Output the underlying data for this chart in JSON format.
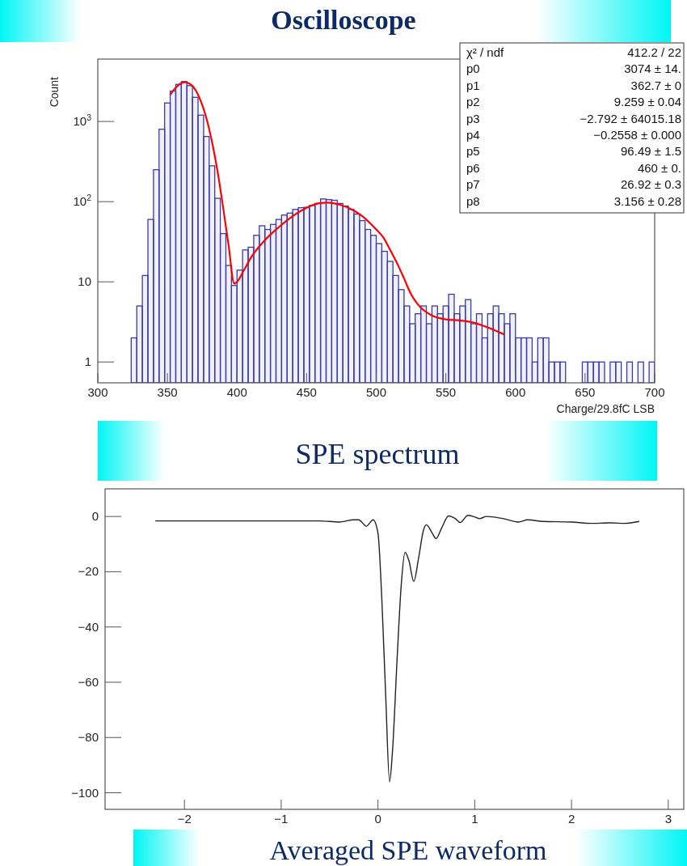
{
  "chart_data": [
    {
      "type": "histogram",
      "title": "Oscilloscope",
      "subtitle": "SPE spectrum",
      "xlabel": "Charge/29.8fC LSB",
      "ylabel": "Count",
      "log": "y",
      "grid": false,
      "color": "#3a3aa8",
      "bins": [
        324,
        328,
        332,
        336,
        340,
        344,
        348,
        352,
        356,
        360,
        364,
        368,
        372,
        376,
        380,
        384,
        388,
        392,
        396,
        400,
        404,
        408,
        412,
        416,
        420,
        424,
        428,
        432,
        436,
        440,
        444,
        448,
        452,
        456,
        460,
        464,
        468,
        472,
        476,
        480,
        484,
        488,
        492,
        496,
        500,
        504,
        508,
        512,
        516,
        520,
        524,
        528,
        532,
        536,
        540,
        544,
        548,
        552,
        556,
        560,
        564,
        568,
        572,
        576,
        580,
        584,
        588,
        592,
        596,
        600,
        604,
        608,
        612,
        616,
        620,
        624,
        628,
        632,
        636,
        640,
        644,
        648,
        652,
        656,
        660,
        664,
        668,
        672,
        676,
        680,
        684,
        688,
        692,
        696,
        700
      ],
      "values": [
        2,
        5,
        12,
        60,
        250,
        800,
        1700,
        2400,
        2900,
        3150,
        2800,
        2000,
        1200,
        650,
        280,
        110,
        40,
        16,
        9,
        14,
        25,
        27,
        38,
        50,
        45,
        52,
        60,
        68,
        72,
        80,
        84,
        85,
        90,
        95,
        108,
        106,
        104,
        95,
        88,
        80,
        70,
        58,
        45,
        38,
        30,
        24,
        18,
        12,
        8,
        5,
        3,
        4,
        5,
        3,
        5,
        4,
        5,
        7,
        4,
        5,
        6,
        3,
        4,
        2,
        4,
        5,
        4,
        3,
        4,
        2,
        2,
        2,
        1,
        2,
        2,
        1,
        1,
        1,
        null,
        null,
        null,
        1,
        1,
        1,
        1,
        null,
        1,
        1,
        null,
        1,
        null,
        1,
        null,
        1
      ],
      "series": [
        {
          "type": "line",
          "color": "#ff0000",
          "x": [
            352,
            356,
            360,
            362.7,
            366,
            370,
            374,
            378,
            382,
            386,
            390,
            394,
            398,
            400,
            405,
            410,
            420,
            430,
            440,
            450,
            460,
            465,
            470,
            480,
            490,
            500,
            505,
            510,
            515,
            520,
            525,
            530,
            540,
            550,
            560,
            570,
            580,
            592
          ],
          "values": [
            2150,
            2650,
            3000,
            3074,
            2950,
            2500,
            1800,
            1100,
            560,
            240,
            85,
            28,
            9.5,
            10,
            14,
            20,
            33,
            48,
            66,
            84,
            96,
            97,
            95,
            84,
            66,
            45,
            36,
            25,
            17,
            11,
            7,
            5.2,
            3.8,
            3.4,
            3.3,
            3.1,
            2.7,
            2.2
          ]
        }
      ],
      "xlim": [
        300,
        700
      ],
      "xticks": [
        300,
        350,
        400,
        450,
        500,
        550,
        600,
        650,
        700
      ],
      "ylim": [
        0.55,
        6000
      ],
      "yticks": [
        1,
        10,
        {
          "value": 100,
          "label": "10$^{2}$"
        },
        {
          "value": 1000,
          "label": "10$^{3}$"
        }
      ],
      "annotations": [
        "χ² / ndf  412.2 / 22",
        "p0  3074 ± 14.",
        "p1  362.7 ± 0",
        "p2  9.259 ± 0.04",
        "p3  −2.792 ± 64015.18",
        "p4  −0.2558 ± 0.000",
        "p5  96.49 ± 1.5",
        "p6  460 ± 0.",
        "p7  26.92 ± 0.3",
        "p8  3.156 ± 0.28"
      ]
    },
    {
      "type": "line",
      "title": "Averaged SPE waveform",
      "color": "#222222",
      "grid": false,
      "line_style": "solid",
      "marker": "none",
      "x": [
        -2.3,
        -1.5,
        -0.6,
        -0.4,
        -0.25,
        -0.2,
        -0.12,
        -0.05,
        0,
        0.04,
        0.08,
        0.12,
        0.15,
        0.2,
        0.24,
        0.28,
        0.32,
        0.37,
        0.42,
        0.47,
        0.5,
        0.56,
        0.6,
        0.66,
        0.73,
        0.8,
        0.85,
        0.93,
        1.0,
        1.05,
        1.12,
        1.2,
        1.3,
        1.45,
        1.55,
        1.7,
        2.0,
        2.2,
        2.4,
        2.55,
        2.7
      ],
      "values": [
        -1.6,
        -1.6,
        -1.6,
        -2,
        -1.2,
        -1.2,
        -3.5,
        -1.2,
        -6,
        -30,
        -65,
        -96,
        -85,
        -50,
        -25,
        -13,
        -16,
        -23.5,
        -15,
        -5,
        -3,
        -6,
        -8,
        -4,
        0.2,
        -0.8,
        -2.2,
        0.4,
        -0.2,
        -0.8,
        0,
        -0.2,
        -0.8,
        -2,
        -1.2,
        -1.8,
        -2,
        -2.5,
        -2.3,
        -2.5,
        -1.8
      ],
      "xlim": [
        -2.82,
        3.16
      ],
      "xticks": [
        {
          "value": -2,
          "label": "−2"
        },
        {
          "value": -1,
          "label": "−1"
        },
        0,
        1,
        2,
        3
      ],
      "ylim": [
        -106,
        10
      ],
      "yticks": [
        0,
        {
          "value": -20,
          "label": "−20"
        },
        {
          "value": -40,
          "label": "−40"
        },
        {
          "value": -60,
          "label": "−60"
        },
        {
          "value": -80,
          "label": "−80"
        },
        {
          "value": -100,
          "label": "−100"
        }
      ]
    }
  ]
}
